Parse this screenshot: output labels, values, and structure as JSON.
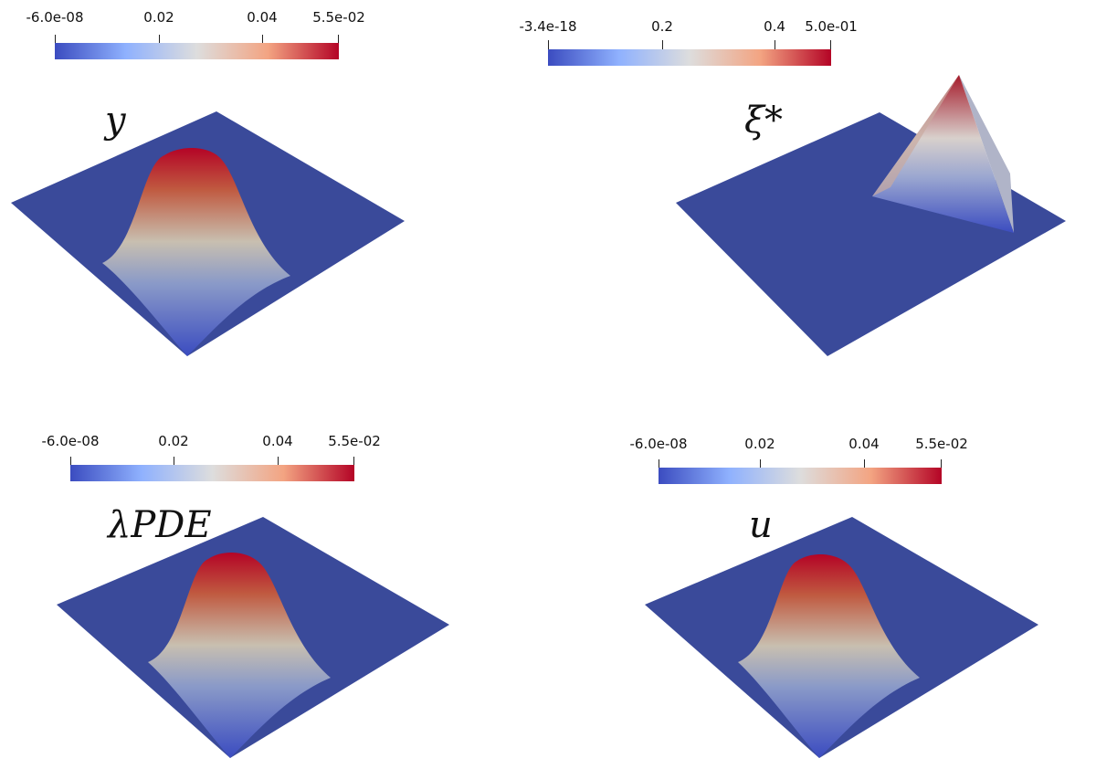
{
  "colormap": {
    "low": "#3b4cc0",
    "mid": "#dddddd",
    "high": "#b40426"
  },
  "plane_color": "#3a4a9a",
  "panels": [
    {
      "variable": "y",
      "colorbar": {
        "ticks": [
          "-6.0e-08",
          "0.02",
          "0.04",
          "5.5e-02"
        ]
      }
    },
    {
      "variable": "ξ*",
      "colorbar": {
        "ticks": [
          "-3.4e-18",
          "0.2",
          "0.4",
          "5.0e-01"
        ]
      }
    },
    {
      "variable": "λPDE",
      "colorbar": {
        "ticks": [
          "-6.0e-08",
          "0.02",
          "0.04",
          "5.5e-02"
        ]
      }
    },
    {
      "variable": "u",
      "colorbar": {
        "ticks": [
          "-6.0e-08",
          "0.02",
          "0.04",
          "5.5e-02"
        ]
      }
    }
  ]
}
